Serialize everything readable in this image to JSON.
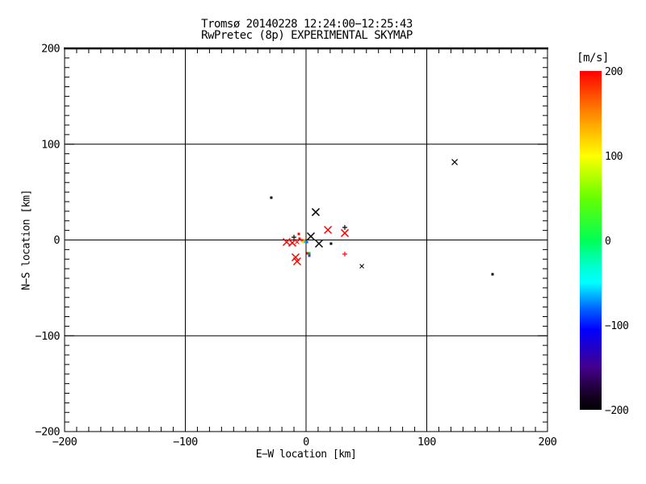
{
  "page": {
    "background": "#ffffff"
  },
  "chart_data": {
    "type": "scatter",
    "title_line1": "Tromsø 20140228 12:24:00−12:25:43",
    "title_line2": "RwPretec (8p) EXPERIMENTAL SKYMAP",
    "xlabel": "E−W location [km]",
    "ylabel": "N−S location [km]",
    "xlim": [
      -200,
      200
    ],
    "ylim": [
      -200,
      200
    ],
    "grid": true,
    "grid_values": [
      -100,
      0,
      100
    ],
    "minor_tick_step": 10,
    "axis_color": "#000000",
    "x_ticks": [
      {
        "value": -200,
        "label": "−200"
      },
      {
        "value": -100,
        "label": "−100"
      },
      {
        "value": 0,
        "label": "0"
      },
      {
        "value": 100,
        "label": "100"
      },
      {
        "value": 200,
        "label": "200"
      }
    ],
    "y_ticks": [
      {
        "value": 200,
        "label": "200"
      },
      {
        "value": 100,
        "label": "100"
      },
      {
        "value": 0,
        "label": "0"
      },
      {
        "value": -100,
        "label": "−100"
      },
      {
        "value": -200,
        "label": "−200"
      }
    ],
    "points": [
      {
        "x": -28.8,
        "y": 44.2,
        "marker": "dot",
        "color": "#000000",
        "s": 1.5,
        "w": 1
      },
      {
        "x": 8.0,
        "y": 29.1,
        "marker": "x",
        "color": "#000000",
        "s": 4.5,
        "w": 1.5
      },
      {
        "x": 123.1,
        "y": 81.3,
        "marker": "x",
        "color": "#000000",
        "s": 3.5,
        "w": 1.2
      },
      {
        "x": 4.0,
        "y": 3.8,
        "marker": "x",
        "color": "#000000",
        "s": 4.5,
        "w": 1.5
      },
      {
        "x": 10.7,
        "y": -3.8,
        "marker": "x",
        "color": "#000000",
        "s": 4.5,
        "w": 1.5
      },
      {
        "x": -10.0,
        "y": 2.9,
        "marker": "plus",
        "color": "#000000",
        "s": 3,
        "w": 1.2
      },
      {
        "x": 32.1,
        "y": 13.1,
        "marker": "plus",
        "color": "#000000",
        "s": 3,
        "w": 1.2
      },
      {
        "x": 20.7,
        "y": -3.8,
        "marker": "dot",
        "color": "#000000",
        "s": 1.5,
        "w": 1
      },
      {
        "x": 46.2,
        "y": -27.4,
        "marker": "x",
        "color": "#000000",
        "s": 2.5,
        "w": 1
      },
      {
        "x": 154.5,
        "y": -35.8,
        "marker": "dot",
        "color": "#000000",
        "s": 1.5,
        "w": 1
      },
      {
        "x": 18.1,
        "y": 10.5,
        "marker": "x",
        "color": "#ff0000",
        "s": 4.5,
        "w": 1.5
      },
      {
        "x": 32.1,
        "y": 7.2,
        "marker": "x",
        "color": "#ff0000",
        "s": 4.5,
        "w": 1.5
      },
      {
        "x": -16.1,
        "y": -2.1,
        "marker": "x",
        "color": "#ff0000",
        "s": 4.5,
        "w": 1.5
      },
      {
        "x": -11.4,
        "y": -2.9,
        "marker": "x",
        "color": "#ff0000",
        "s": 4.5,
        "w": 1.5
      },
      {
        "x": -7.4,
        "y": -2.1,
        "marker": "x",
        "color": "#ff0000",
        "s": 2.5,
        "w": 1
      },
      {
        "x": -8.7,
        "y": -18.1,
        "marker": "x",
        "color": "#ff0000",
        "s": 4.5,
        "w": 1.5
      },
      {
        "x": -7.4,
        "y": -22.3,
        "marker": "x",
        "color": "#ff0000",
        "s": 4.5,
        "w": 1.5
      },
      {
        "x": 32.1,
        "y": -14.7,
        "marker": "plus",
        "color": "#ff0000",
        "s": 3,
        "w": 1.2
      },
      {
        "x": -6.0,
        "y": 6.3,
        "marker": "dot",
        "color": "#ff0000",
        "s": 1.5,
        "w": 1
      },
      {
        "x": -5.4,
        "y": 1.3,
        "marker": "dot",
        "color": "#ff0000",
        "s": 1.5,
        "w": 1
      },
      {
        "x": 1.3,
        "y": -13.9,
        "marker": "dot",
        "color": "#ff0000",
        "s": 1.5,
        "w": 1
      },
      {
        "x": -3.3,
        "y": -0.4,
        "marker": "dot",
        "color": "#ff0000",
        "s": 1.5,
        "w": 1
      },
      {
        "x": -1.3,
        "y": -0.4,
        "marker": "dot",
        "color": "#ff8800",
        "s": 1.5,
        "w": 1
      },
      {
        "x": -2.7,
        "y": -2.1,
        "marker": "dot",
        "color": "#ffdd00",
        "s": 1.5,
        "w": 1
      },
      {
        "x": -0.7,
        "y": -2.1,
        "marker": "dot",
        "color": "#00ccff",
        "s": 1.5,
        "w": 1
      },
      {
        "x": 0.7,
        "y": -2.1,
        "marker": "dot",
        "color": "#2255ff",
        "s": 1.5,
        "w": 1
      },
      {
        "x": 2.7,
        "y": -13.9,
        "marker": "dot",
        "color": "#00bb22",
        "s": 1.5,
        "w": 1
      },
      {
        "x": 2.7,
        "y": -16.4,
        "marker": "dot",
        "color": "#4433cc",
        "s": 1.5,
        "w": 1
      }
    ],
    "colorbar": {
      "label": "[m/s]",
      "min": -200,
      "max": 200,
      "ticks": [
        {
          "value": 200,
          "label": "200"
        },
        {
          "value": 100,
          "label": "100"
        },
        {
          "value": 0,
          "label": "0"
        },
        {
          "value": -100,
          "label": "−100"
        },
        {
          "value": -200,
          "label": "−200"
        }
      ],
      "gradient": [
        {
          "color": "#ff0000",
          "value": 200
        },
        {
          "color": "#ff8800",
          "value": 150
        },
        {
          "color": "#ffff00",
          "value": 100
        },
        {
          "color": "#66ff00",
          "value": 50
        },
        {
          "color": "#00ff55",
          "value": 0
        },
        {
          "color": "#00ffcc",
          "value": -30
        },
        {
          "color": "#00ffff",
          "value": -50
        },
        {
          "color": "#0066ff",
          "value": -80
        },
        {
          "color": "#0000ff",
          "value": -105
        },
        {
          "color": "#44008c",
          "value": -150
        },
        {
          "color": "#1c0030",
          "value": -178
        },
        {
          "color": "#000000",
          "value": -200
        }
      ]
    }
  }
}
